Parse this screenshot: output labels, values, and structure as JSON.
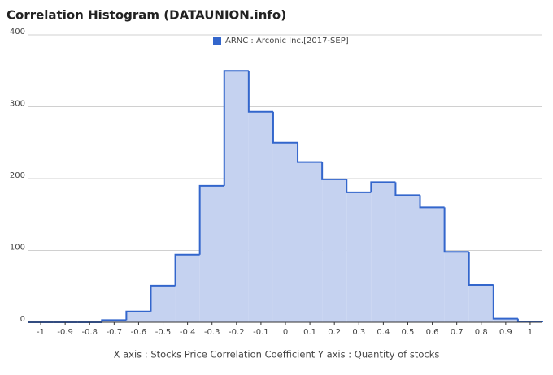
{
  "chart_data": {
    "type": "histogram",
    "title": "Correlation Histogram (DATAUNION.info)",
    "x_label": "X axis : Stocks Price Correlation Coefficient  Y axis : Quantity of stocks",
    "series": [
      {
        "name": "ARNC : Arconic Inc.[2017-SEP]",
        "color": "#3366cc",
        "bins": [
          -1.05,
          -0.95,
          -0.85,
          -0.75,
          -0.65,
          -0.55,
          -0.45,
          -0.35,
          -0.25,
          -0.15,
          -0.05,
          0.05,
          0.15,
          0.25,
          0.35,
          0.45,
          0.55,
          0.65,
          0.75,
          0.85,
          0.95,
          1.05
        ],
        "values": [
          0,
          0,
          0,
          3,
          15,
          51,
          94,
          190,
          350,
          293,
          250,
          223,
          199,
          181,
          195,
          177,
          160,
          98,
          52,
          5,
          1
        ]
      }
    ],
    "xlim": [
      -1.05,
      1.05
    ],
    "xticks": [
      -1,
      -0.9,
      -0.8,
      -0.7,
      -0.6,
      -0.5,
      -0.4,
      -0.3,
      -0.2,
      -0.1,
      0,
      0.1,
      0.2,
      0.3,
      0.4,
      0.5,
      0.6,
      0.7,
      0.8,
      0.9,
      1
    ],
    "ylim": [
      0,
      400
    ],
    "yticks": [
      0,
      100,
      200,
      300,
      400
    ],
    "grid": true
  }
}
